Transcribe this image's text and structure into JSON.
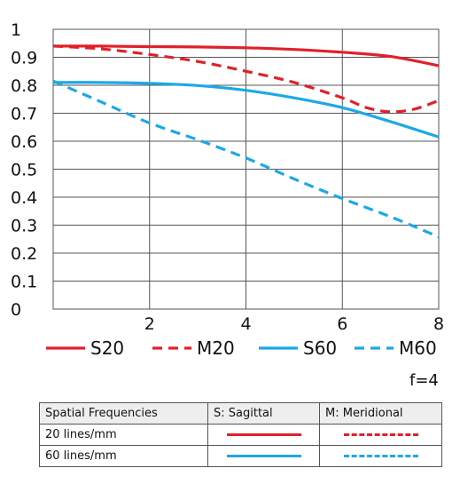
{
  "chart_data": {
    "type": "line",
    "title": "",
    "xlabel": "",
    "ylabel": "",
    "xlim": [
      0,
      8
    ],
    "ylim": [
      0,
      1
    ],
    "xticks": [
      "2",
      "4",
      "6",
      "8"
    ],
    "yticks": [
      "0",
      "0.1",
      "0.2",
      "0.3",
      "0.4",
      "0.5",
      "0.6",
      "0.7",
      "0.8",
      "0.9",
      "1"
    ],
    "grid": true,
    "legend_position": "bottom",
    "series": [
      {
        "name": "S20",
        "color": "#e0212a",
        "style": "solid",
        "x": [
          0,
          1,
          2,
          3,
          4,
          5,
          6,
          7,
          8
        ],
        "y": [
          0.94,
          0.94,
          0.938,
          0.937,
          0.934,
          0.928,
          0.918,
          0.903,
          0.87
        ]
      },
      {
        "name": "M20",
        "color": "#e0212a",
        "style": "dashed",
        "x": [
          0,
          1,
          2,
          3,
          4,
          5,
          6,
          6.5,
          7,
          7.5,
          8
        ],
        "y": [
          0.94,
          0.93,
          0.91,
          0.885,
          0.85,
          0.81,
          0.755,
          0.72,
          0.705,
          0.715,
          0.745
        ]
      },
      {
        "name": "S60",
        "color": "#1ba9e6",
        "style": "solid",
        "x": [
          0,
          1,
          2,
          3,
          4,
          5,
          6,
          7,
          8
        ],
        "y": [
          0.81,
          0.81,
          0.807,
          0.799,
          0.782,
          0.755,
          0.72,
          0.67,
          0.615
        ]
      },
      {
        "name": "M60",
        "color": "#1ba9e6",
        "style": "dashed",
        "x": [
          0,
          1,
          2,
          3,
          4,
          5,
          6,
          7,
          8
        ],
        "y": [
          0.815,
          0.74,
          0.665,
          0.605,
          0.54,
          0.465,
          0.395,
          0.33,
          0.258
        ]
      }
    ]
  },
  "aperture": "f=4",
  "key_table": {
    "header": {
      "col1": "Spatial Frequencies",
      "col2": "S: Sagittal",
      "col3": "M: Meridional"
    },
    "rows": [
      {
        "label": "20 lines/mm"
      },
      {
        "label": "60 lines/mm"
      }
    ]
  }
}
